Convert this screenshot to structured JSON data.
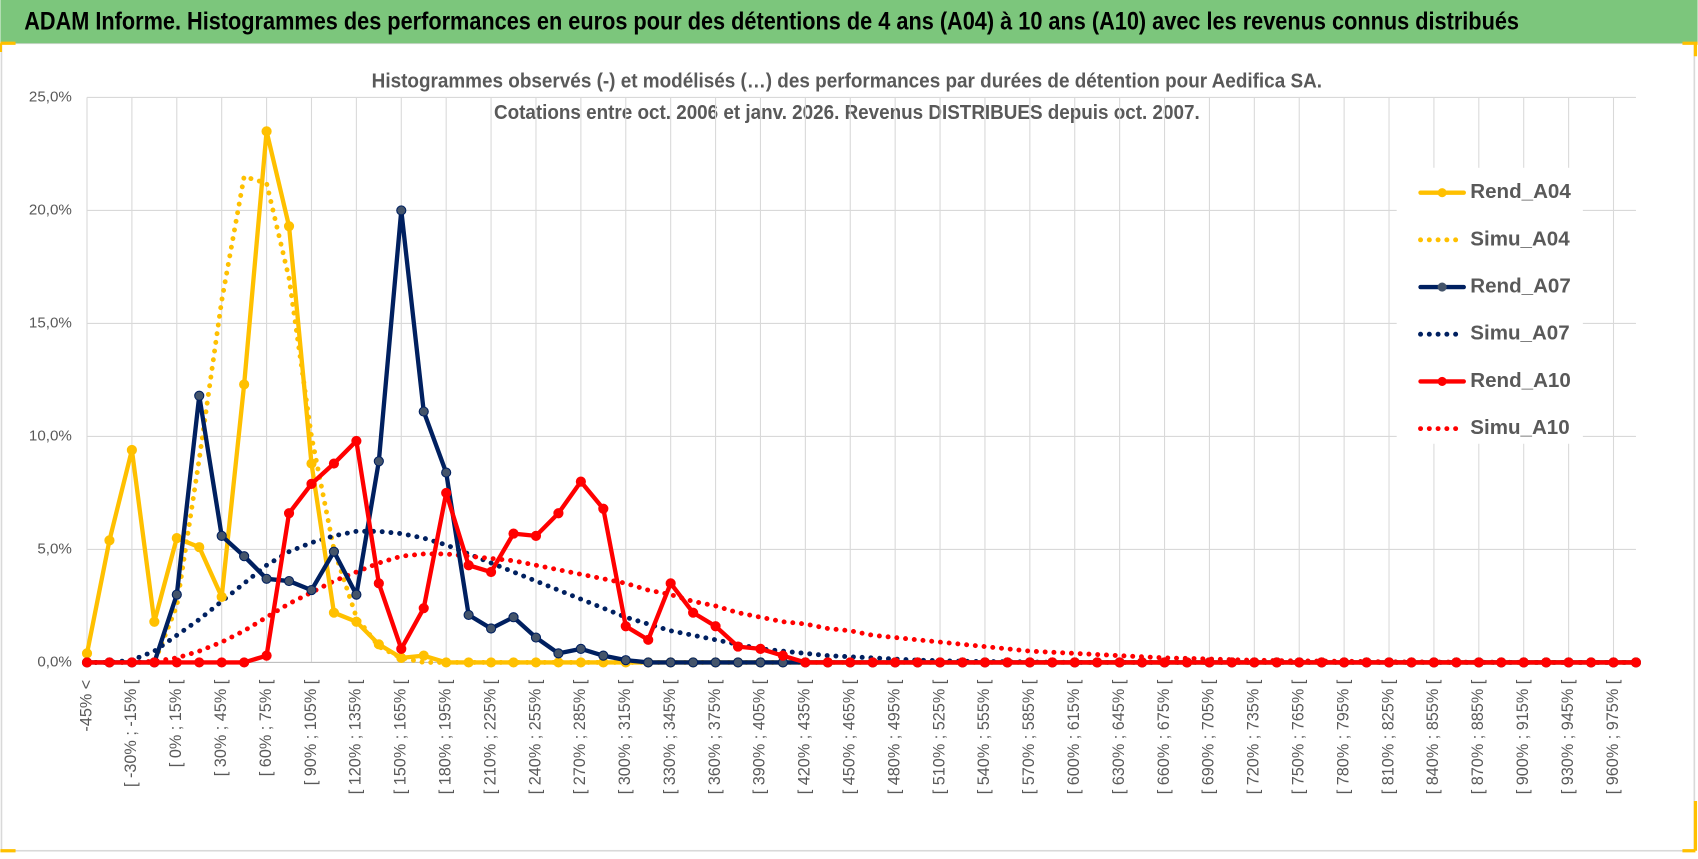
{
  "header": {
    "title": "ADAM Informe. Histogrammes des performances en euros pour des détentions de 4 ans (A04) à 10 ans (A10) avec les revenus connus distribués"
  },
  "chart_data": {
    "type": "line",
    "title": [
      "Histogrammes observés (-) et modélisés (…) des performances par durées de détention pour Aedifica SA.",
      "Cotations entre oct. 2006 et janv. 2026. Revenus DISTRIBUES depuis oct. 2007."
    ],
    "categories": [
      "-45% <",
      null,
      "[ -30% ; -15% [",
      null,
      "[ 0% ; 15% [",
      null,
      "[ 30% ; 45% [",
      null,
      "[ 60% ; 75% [",
      null,
      "[ 90% ; 105% [",
      null,
      "[ 120% ; 135% [",
      null,
      "[ 150% ; 165% [",
      null,
      "[ 180% ; 195% [",
      null,
      "[ 210% ; 225% [",
      null,
      "[ 240% ; 255% [",
      null,
      "[ 270% ; 285% [",
      null,
      "[ 300% ; 315% [",
      null,
      "[ 330% ; 345% [",
      null,
      "[ 360% ; 375% [",
      null,
      "[ 390% ; 405% [",
      null,
      "[ 420% ; 435% [",
      null,
      "[ 450% ; 465% [",
      null,
      "[ 480% ; 495% [",
      null,
      "[ 510% ; 525% [",
      null,
      "[ 540% ; 555% [",
      null,
      "[ 570% ; 585% [",
      null,
      "[ 600% ; 615% [",
      null,
      "[ 630% ; 645% [",
      null,
      "[ 660% ; 675% [",
      null,
      "[ 690% ; 705% [",
      null,
      "[ 720% ; 735% [",
      null,
      "[ 750% ; 765% [",
      null,
      "[ 780% ; 795% [",
      null,
      "[ 810% ; 825% [",
      null,
      "[ 840% ; 855% [",
      null,
      "[ 870% ; 885% [",
      null,
      "[ 900% ; 915% [",
      null,
      "[ 930% ; 945% [",
      null,
      "[ 960% ; 975% [",
      null
    ],
    "ylim": [
      0,
      25
    ],
    "yticks": [
      {
        "value": 0,
        "label": "0,0%"
      },
      {
        "value": 5,
        "label": "5,0%"
      },
      {
        "value": 10,
        "label": "10,0%"
      },
      {
        "value": 15,
        "label": "15,0%"
      },
      {
        "value": 20,
        "label": "20,0%"
      },
      {
        "value": 25,
        "label": "25,0%"
      }
    ],
    "grid": true,
    "legend": "right",
    "series": [
      {
        "name": "Rend_A04",
        "color": "#ffc000",
        "marker": true,
        "dash": "solid",
        "values": [
          0.4,
          5.4,
          9.4,
          1.8,
          5.5,
          5.1,
          2.9,
          12.3,
          23.5,
          19.3,
          8.8,
          2.2,
          1.8,
          0.8,
          0.2,
          0.3,
          0,
          0,
          0,
          0,
          0,
          0,
          0,
          0,
          0,
          0,
          0,
          0,
          0,
          0,
          0,
          0,
          0,
          0,
          0,
          0,
          0,
          0,
          0,
          0,
          0,
          0,
          0,
          0,
          0,
          0,
          0,
          0,
          0,
          0,
          0,
          0,
          0,
          0,
          0,
          0,
          0,
          0,
          0,
          0,
          0,
          0,
          0,
          0,
          0,
          0,
          0,
          0,
          0,
          0
        ]
      },
      {
        "name": "Simu_A04",
        "color": "#ffc000",
        "marker": false,
        "dash": "dotted",
        "values": [
          0,
          0,
          0,
          0,
          2.5,
          9,
          16,
          21.5,
          21.2,
          17,
          10,
          5,
          2,
          0.7,
          0.2,
          0,
          0,
          0,
          0,
          0,
          0,
          0,
          0,
          0,
          0,
          0,
          0,
          0,
          0,
          0,
          0,
          0,
          0,
          0,
          0,
          0,
          0,
          0,
          0,
          0,
          0,
          0,
          0,
          0,
          0,
          0,
          0,
          0,
          0,
          0,
          0,
          0,
          0,
          0,
          0,
          0,
          0,
          0,
          0,
          0,
          0,
          0,
          0,
          0,
          0,
          0,
          0,
          0,
          0,
          0
        ]
      },
      {
        "name": "Rend_A07",
        "color": "#002060",
        "marker": true,
        "dash": "solid",
        "values": [
          0,
          0,
          0,
          0,
          3.0,
          11.8,
          5.6,
          4.7,
          3.7,
          3.6,
          3.2,
          4.9,
          3.0,
          8.9,
          20.0,
          11.1,
          8.4,
          2.1,
          1.5,
          2.0,
          1.1,
          0.4,
          0.6,
          0.3,
          0.1,
          0,
          0,
          0,
          0,
          0,
          0,
          0,
          0,
          0,
          0,
          0,
          0,
          0,
          0,
          0,
          0,
          0,
          0,
          0,
          0,
          0,
          0,
          0,
          0,
          0,
          0,
          0,
          0,
          0,
          0,
          0,
          0,
          0,
          0,
          0,
          0,
          0,
          0,
          0,
          0,
          0,
          0,
          0,
          0,
          0
        ]
      },
      {
        "name": "Simu_A07",
        "color": "#002060",
        "marker": false,
        "dash": "dotted",
        "values": [
          0,
          0,
          0.1,
          0.5,
          1.2,
          1.9,
          2.7,
          3.5,
          4.3,
          4.9,
          5.3,
          5.6,
          5.8,
          5.8,
          5.7,
          5.5,
          5.2,
          4.8,
          4.4,
          4.0,
          3.6,
          3.2,
          2.8,
          2.4,
          2.0,
          1.7,
          1.4,
          1.2,
          1.0,
          0.8,
          0.6,
          0.5,
          0.4,
          0.3,
          0.25,
          0.2,
          0.15,
          0.1,
          0.08,
          0.05,
          0.04,
          0.03,
          0.02,
          0.01,
          0,
          0,
          0,
          0,
          0,
          0,
          0,
          0,
          0,
          0,
          0,
          0,
          0,
          0,
          0,
          0,
          0,
          0,
          0,
          0,
          0,
          0,
          0,
          0,
          0,
          0
        ]
      },
      {
        "name": "Rend_A10",
        "color": "#ff0000",
        "marker": true,
        "dash": "solid",
        "values": [
          0,
          0,
          0,
          0,
          0,
          0,
          0,
          0,
          0.3,
          6.6,
          7.9,
          8.8,
          9.8,
          3.5,
          0.6,
          2.4,
          7.5,
          4.3,
          4.0,
          5.7,
          5.6,
          6.6,
          8.0,
          6.8,
          1.6,
          1.0,
          3.5,
          2.2,
          1.6,
          0.7,
          0.6,
          0.3,
          0,
          0,
          0,
          0,
          0,
          0,
          0,
          0,
          0,
          0,
          0,
          0,
          0,
          0,
          0,
          0,
          0,
          0,
          0,
          0,
          0,
          0,
          0,
          0,
          0,
          0,
          0,
          0,
          0,
          0,
          0,
          0,
          0,
          0,
          0,
          0,
          0,
          0
        ]
      },
      {
        "name": "Simu_A10",
        "color": "#ff0000",
        "marker": false,
        "dash": "dotted",
        "values": [
          0,
          0,
          0,
          0.05,
          0.2,
          0.5,
          0.9,
          1.4,
          2.0,
          2.6,
          3.1,
          3.6,
          4.0,
          4.4,
          4.7,
          4.8,
          4.8,
          4.7,
          4.6,
          4.5,
          4.3,
          4.1,
          3.9,
          3.7,
          3.5,
          3.2,
          3.0,
          2.7,
          2.5,
          2.2,
          2.0,
          1.8,
          1.7,
          1.5,
          1.4,
          1.2,
          1.1,
          1.0,
          0.9,
          0.8,
          0.7,
          0.6,
          0.5,
          0.45,
          0.4,
          0.35,
          0.3,
          0.25,
          0.2,
          0.18,
          0.15,
          0.12,
          0.1,
          0.08,
          0.07,
          0.06,
          0.05,
          0.04,
          0.03,
          0.02,
          0.02,
          0.01,
          0.01,
          0.01,
          0,
          0,
          0,
          0,
          0,
          0
        ]
      }
    ]
  }
}
